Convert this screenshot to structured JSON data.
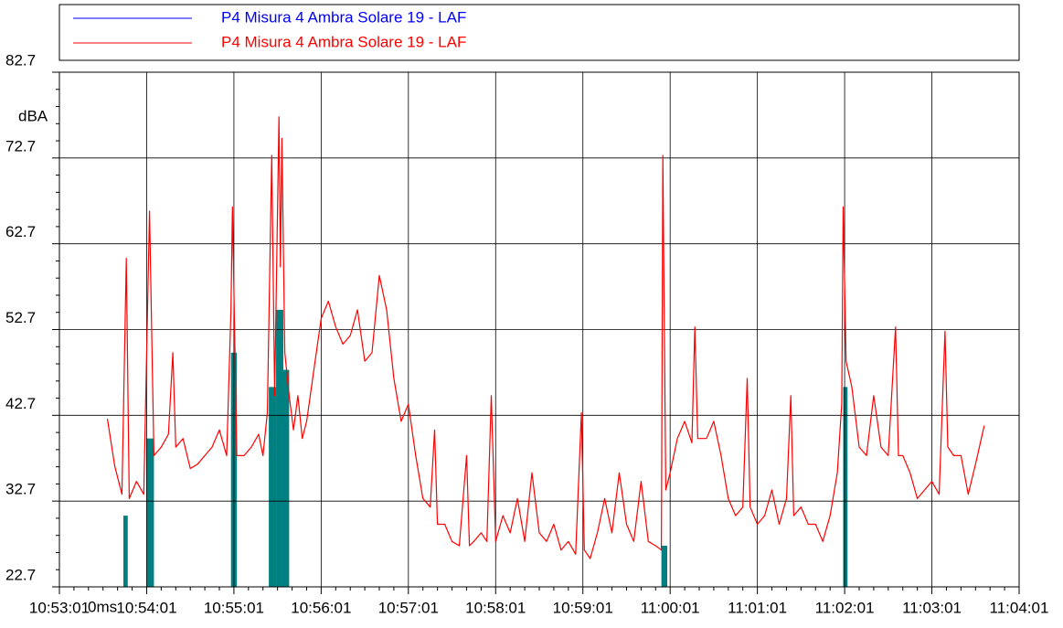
{
  "chart_data": {
    "type": "line",
    "legend": [
      {
        "label": "P4 Misura 4 Ambra Solare 19 - LAF",
        "color": "#0000ff"
      },
      {
        "label": "P4 Misura 4 Ambra Solare 19 - LAF",
        "color": "#ff0000"
      }
    ],
    "ylabel": "dBA",
    "xlabel": "0ms",
    "xlim": [
      "10:53:01",
      "11:04:01"
    ],
    "xticks": [
      "10:53:01",
      "10:54:01",
      "10:55:01",
      "10:56:01",
      "10:57:01",
      "10:58:01",
      "10:59:01",
      "11:00:01",
      "11:01:01",
      "11:02:01",
      "11:03:01",
      "11:04:01"
    ],
    "ylim": [
      22.7,
      82.7
    ],
    "yticks": [
      22.7,
      32.7,
      42.7,
      52.7,
      62.7,
      72.7,
      82.7
    ],
    "grid": true,
    "x": [
      "10:53:34",
      "10:53:39",
      "10:53:44",
      "10:53:47",
      "10:53:49",
      "10:53:54",
      "10:53:59",
      "10:54:03",
      "10:54:06",
      "10:54:11",
      "10:54:16",
      "10:54:19",
      "10:54:21",
      "10:54:26",
      "10:54:31",
      "10:54:36",
      "10:54:41",
      "10:54:46",
      "10:54:51",
      "10:54:56",
      "10:54:59",
      "10:55:00",
      "10:55:03",
      "10:55:08",
      "10:55:13",
      "10:55:18",
      "10:55:21",
      "10:55:24",
      "10:55:27",
      "10:55:29",
      "10:55:32",
      "10:55:33",
      "10:55:34",
      "10:55:36",
      "10:55:39",
      "10:55:42",
      "10:55:45",
      "10:55:48",
      "10:55:51",
      "10:55:56",
      "10:56:01",
      "10:56:06",
      "10:56:11",
      "10:56:16",
      "10:56:21",
      "10:56:26",
      "10:56:31",
      "10:56:36",
      "10:56:41",
      "10:56:46",
      "10:56:51",
      "10:56:56",
      "10:57:01",
      "10:57:06",
      "10:57:11",
      "10:57:16",
      "10:57:19",
      "10:57:21",
      "10:57:26",
      "10:57:31",
      "10:57:36",
      "10:57:41",
      "10:57:43",
      "10:57:46",
      "10:57:51",
      "10:57:55",
      "10:57:58",
      "10:58:01",
      "10:58:06",
      "10:58:11",
      "10:58:16",
      "10:58:21",
      "10:58:26",
      "10:58:31",
      "10:58:36",
      "10:58:41",
      "10:58:46",
      "10:58:51",
      "10:58:56",
      "10:59:00",
      "10:59:02",
      "10:59:06",
      "10:59:11",
      "10:59:16",
      "10:59:21",
      "10:59:26",
      "10:59:31",
      "10:59:36",
      "10:59:41",
      "10:59:46",
      "10:59:51",
      "10:59:55",
      "10:59:56",
      "10:59:58",
      "11:00:01",
      "11:00:06",
      "11:00:11",
      "11:00:16",
      "11:00:18",
      "11:00:20",
      "11:00:26",
      "11:00:31",
      "11:00:36",
      "11:00:41",
      "11:00:46",
      "11:00:51",
      "11:00:54",
      "11:00:56",
      "11:01:01",
      "11:01:06",
      "11:01:11",
      "11:01:16",
      "11:01:21",
      "11:01:24",
      "11:01:26",
      "11:01:31",
      "11:01:36",
      "11:01:41",
      "11:01:46",
      "11:01:51",
      "11:01:56",
      "11:01:59",
      "11:02:00",
      "11:02:02",
      "11:02:06",
      "11:02:11",
      "11:02:16",
      "11:02:21",
      "11:02:26",
      "11:02:31",
      "11:02:36",
      "11:02:38",
      "11:02:41",
      "11:02:46",
      "11:02:51",
      "11:02:56",
      "11:03:01",
      "11:03:06",
      "11:03:10",
      "11:03:12",
      "11:03:16",
      "11:03:21",
      "11:03:26",
      "11:03:31",
      "11:03:37"
    ],
    "series": [
      {
        "color": "#ff0000",
        "values": [
          42.3,
          36.8,
          33.5,
          61,
          33,
          35,
          33.5,
          66.5,
          38,
          39,
          40.5,
          50,
          39,
          40,
          36.5,
          37,
          38,
          39,
          41,
          38,
          55,
          67,
          38,
          38,
          39,
          40.5,
          38,
          43,
          73,
          45,
          77.5,
          60,
          75,
          50,
          45,
          41,
          45,
          40,
          42,
          48,
          54,
          56,
          53,
          51,
          52,
          55,
          49,
          50,
          59,
          55,
          47,
          42,
          44,
          38,
          33,
          32,
          41,
          30,
          30,
          28,
          27.5,
          38,
          27.5,
          28,
          29,
          28,
          45,
          28,
          31,
          29,
          33,
          28,
          36,
          29,
          28,
          30,
          27,
          28,
          26.5,
          43,
          27,
          26,
          29,
          33,
          29,
          36,
          30,
          28,
          35,
          28,
          27.5,
          27,
          73,
          34,
          36,
          40,
          42,
          39.5,
          53,
          40,
          40,
          42,
          38,
          33,
          31,
          32,
          47,
          32,
          30,
          31,
          34,
          30,
          33,
          45,
          31,
          32,
          30,
          30,
          28,
          31,
          36,
          44,
          67,
          49,
          46,
          39,
          38,
          45,
          39,
          38,
          53,
          38,
          38,
          36,
          33,
          34,
          35,
          33.5,
          52.5,
          39,
          38,
          38,
          33.5,
          37,
          41.5
        ]
      }
    ],
    "highlights": {
      "color": "#008080",
      "start": [
        "10:53:45",
        "10:54:01",
        "10:54:59",
        "10:55:25",
        "10:55:30",
        "10:55:35",
        "10:59:55",
        "11:02:00"
      ],
      "end": [
        "10:53:48",
        "10:54:06",
        "10:55:03",
        "10:55:30",
        "10:55:35",
        "10:55:39",
        "10:59:59",
        "11:02:03"
      ],
      "values": [
        31,
        40,
        50,
        46,
        55,
        48,
        27.5,
        46
      ]
    }
  }
}
